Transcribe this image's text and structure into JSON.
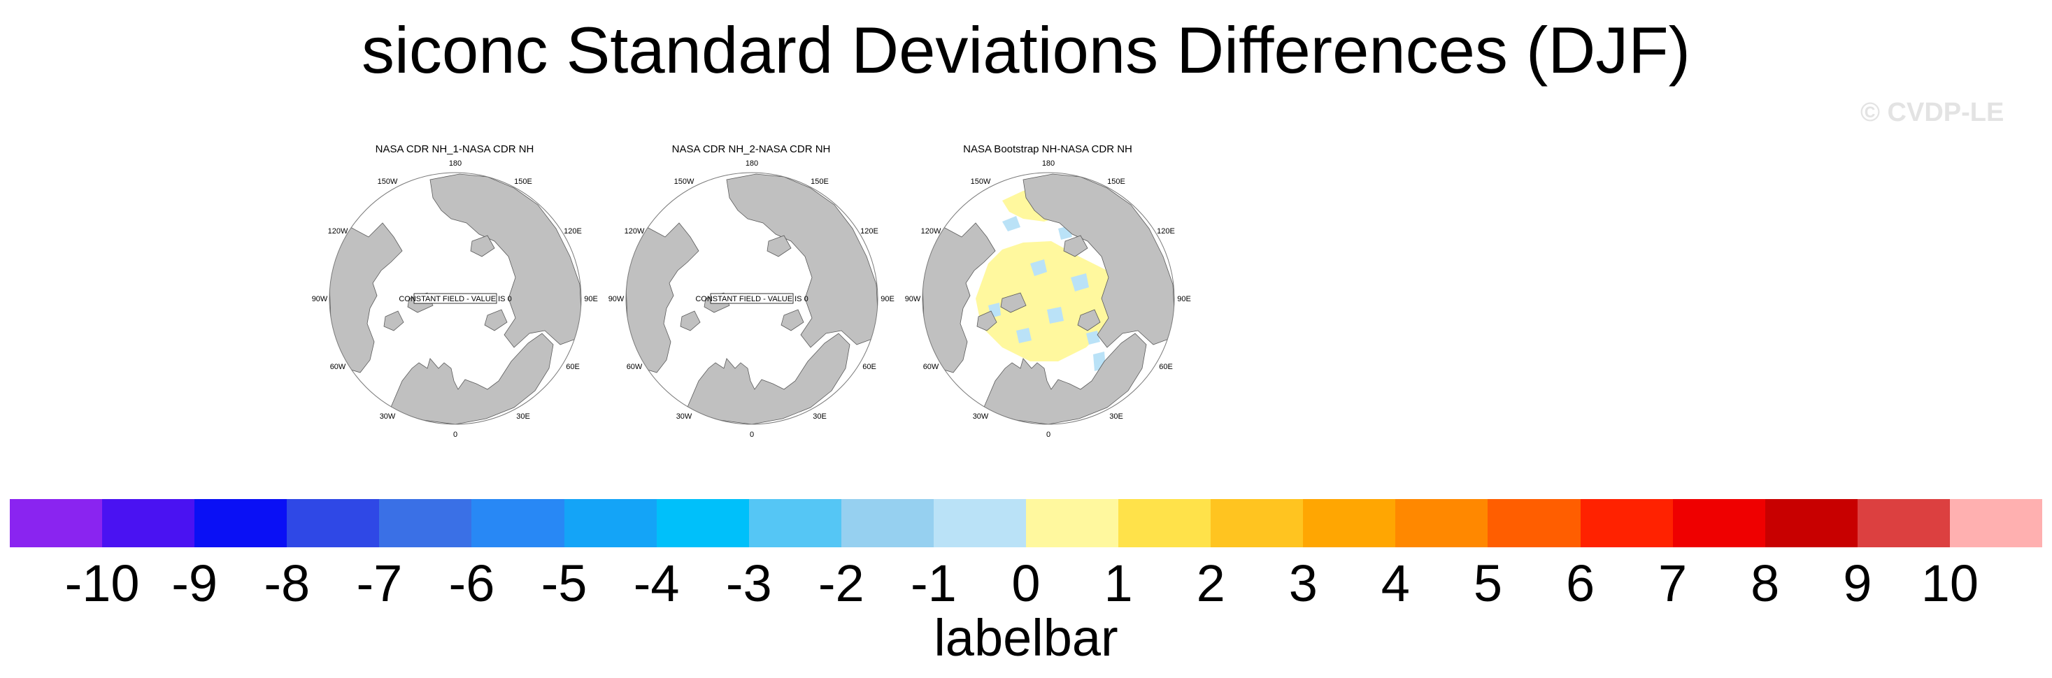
{
  "title": "siconc Standard Deviations Differences (DJF)",
  "watermark": "© CVDP-LE",
  "panels": [
    {
      "title": "NASA CDR NH_1-NASA CDR NH",
      "note": "CONSTANT FIELD - VALUE IS 0"
    },
    {
      "title": "NASA CDR NH_2-NASA CDR NH",
      "note": "CONSTANT FIELD - VALUE IS 0"
    },
    {
      "title": "NASA Bootstrap NH-NASA CDR NH",
      "note": ""
    }
  ],
  "longitude_labels": [
    "180",
    "150E",
    "120E",
    "90E",
    "60E",
    "30E",
    "0",
    "30W",
    "60W",
    "90W",
    "120W",
    "150W"
  ],
  "labelbar": {
    "title": "labelbar",
    "tick_labels": [
      "-10",
      "-9",
      "-8",
      "-7",
      "-6",
      "-5",
      "-4",
      "-3",
      "-2",
      "-1",
      "0",
      "1",
      "2",
      "3",
      "4",
      "5",
      "6",
      "7",
      "8",
      "9",
      "10"
    ],
    "colors": [
      "#8a24f0",
      "#4a12f2",
      "#0a10f5",
      "#2f48e6",
      "#3a70e6",
      "#2888f5",
      "#14a4f7",
      "#00c0fa",
      "#55c6f5",
      "#96d0f0",
      "#bae2f7",
      "#fff89e",
      "#ffe24a",
      "#ffc420",
      "#ffa602",
      "#ff8800",
      "#ff5e00",
      "#ff2200",
      "#ef0000",
      "#c80000",
      "#dc4040",
      "#ffb0b0"
    ]
  },
  "colors": {
    "land": "#c0c0c0",
    "coastline": "#5a5a5a",
    "ocean": "#ffffff"
  }
}
